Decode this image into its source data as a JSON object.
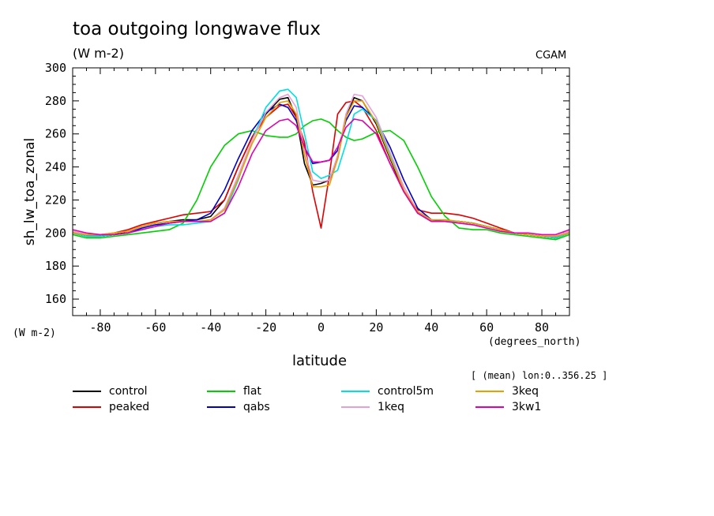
{
  "chart_data": {
    "type": "line",
    "title": "toa outgoing longwave flux",
    "subtitle": "(W m-2)",
    "source_label": "CGAM",
    "ylabel": "sh_lw_toa_zonal",
    "y_unit": "(W m-2)",
    "xlabel": "latitude",
    "x_unit": "(degrees_north)",
    "mean_note": "[ (mean) lon:0..356.25 ]",
    "xlim": [
      -90,
      90
    ],
    "ylim": [
      150,
      300
    ],
    "xticks": [
      -80,
      -60,
      -40,
      -20,
      0,
      20,
      40,
      60,
      80
    ],
    "xtick_labels": [
      "-80",
      "-60",
      "-40",
      "-20",
      "0",
      "20",
      "40",
      "60",
      "80"
    ],
    "yticks": [
      160,
      180,
      200,
      220,
      240,
      260,
      280,
      300
    ],
    "ytick_labels": [
      "160",
      "180",
      "200",
      "220",
      "240",
      "260",
      "280",
      "300"
    ],
    "legend_position": "bottom",
    "x": [
      -90,
      -85,
      -80,
      -75,
      -70,
      -65,
      -60,
      -55,
      -50,
      -45,
      -40,
      -35,
      -30,
      -25,
      -20,
      -15,
      -12,
      -9,
      -6,
      -3,
      0,
      3,
      6,
      9,
      12,
      15,
      20,
      25,
      30,
      35,
      40,
      45,
      50,
      55,
      60,
      65,
      70,
      75,
      80,
      85,
      90
    ],
    "series": [
      {
        "name": "control",
        "color": "#000000",
        "values": [
          200,
          198,
          198,
          199,
          201,
          204,
          206,
          207,
          208,
          208,
          210,
          220,
          240,
          258,
          272,
          281,
          282,
          270,
          242,
          229,
          230,
          232,
          245,
          270,
          282,
          280,
          266,
          245,
          225,
          212,
          207,
          207,
          207,
          206,
          204,
          202,
          200,
          199,
          198,
          197,
          200
        ]
      },
      {
        "name": "peaked",
        "color": "#e00000",
        "values": [
          201,
          199,
          199,
          200,
          202,
          205,
          207,
          209,
          211,
          212,
          213,
          220,
          240,
          258,
          270,
          277,
          278,
          270,
          255,
          225,
          203,
          235,
          272,
          279,
          280,
          276,
          262,
          242,
          225,
          214,
          212,
          212,
          211,
          209,
          206,
          203,
          200,
          199,
          198,
          198,
          201
        ]
      },
      {
        "name": "flat",
        "color": "#00d000",
        "values": [
          199,
          197,
          197,
          198,
          199,
          200,
          201,
          202,
          206,
          220,
          240,
          253,
          260,
          262,
          259,
          258,
          258,
          260,
          265,
          268,
          269,
          267,
          262,
          258,
          256,
          257,
          261,
          262,
          256,
          240,
          222,
          210,
          203,
          202,
          202,
          200,
          199,
          198,
          197,
          196,
          199
        ]
      },
      {
        "name": "qabs",
        "color": "#0000c8",
        "values": [
          200,
          198,
          198,
          199,
          200,
          203,
          205,
          206,
          207,
          208,
          212,
          226,
          245,
          262,
          273,
          278,
          276,
          268,
          252,
          242,
          243,
          244,
          250,
          268,
          277,
          276,
          268,
          252,
          232,
          215,
          208,
          207,
          207,
          206,
          204,
          202,
          200,
          199,
          198,
          197,
          200
        ]
      },
      {
        "name": "control5m",
        "color": "#00e0e0",
        "values": [
          200,
          198,
          198,
          199,
          200,
          202,
          204,
          205,
          205,
          206,
          207,
          212,
          232,
          256,
          276,
          286,
          287,
          282,
          260,
          237,
          233,
          235,
          238,
          254,
          272,
          275,
          268,
          248,
          226,
          212,
          207,
          207,
          207,
          206,
          204,
          202,
          200,
          199,
          198,
          197,
          200
        ]
      },
      {
        "name": "1keq",
        "color": "#e6a0d8",
        "values": [
          201,
          199,
          199,
          200,
          201,
          204,
          206,
          207,
          207,
          207,
          208,
          215,
          235,
          256,
          273,
          282,
          284,
          276,
          250,
          232,
          231,
          232,
          247,
          272,
          284,
          283,
          270,
          249,
          228,
          213,
          207,
          207,
          206,
          205,
          203,
          201,
          200,
          199,
          198,
          198,
          201
        ]
      },
      {
        "name": "3keq",
        "color": "#e8a000",
        "values": [
          200,
          199,
          199,
          200,
          201,
          204,
          206,
          207,
          207,
          207,
          208,
          214,
          233,
          254,
          270,
          279,
          280,
          272,
          247,
          228,
          228,
          229,
          245,
          270,
          280,
          280,
          267,
          246,
          226,
          213,
          208,
          208,
          207,
          206,
          204,
          202,
          200,
          199,
          198,
          198,
          200
        ]
      },
      {
        "name": "3kw1",
        "color": "#e000b0",
        "values": [
          202,
          200,
          199,
          199,
          200,
          202,
          204,
          206,
          207,
          207,
          207,
          212,
          228,
          248,
          262,
          268,
          269,
          265,
          252,
          243,
          243,
          244,
          252,
          264,
          269,
          268,
          260,
          242,
          225,
          212,
          207,
          207,
          206,
          205,
          203,
          201,
          200,
          200,
          199,
          199,
          202
        ]
      }
    ]
  }
}
